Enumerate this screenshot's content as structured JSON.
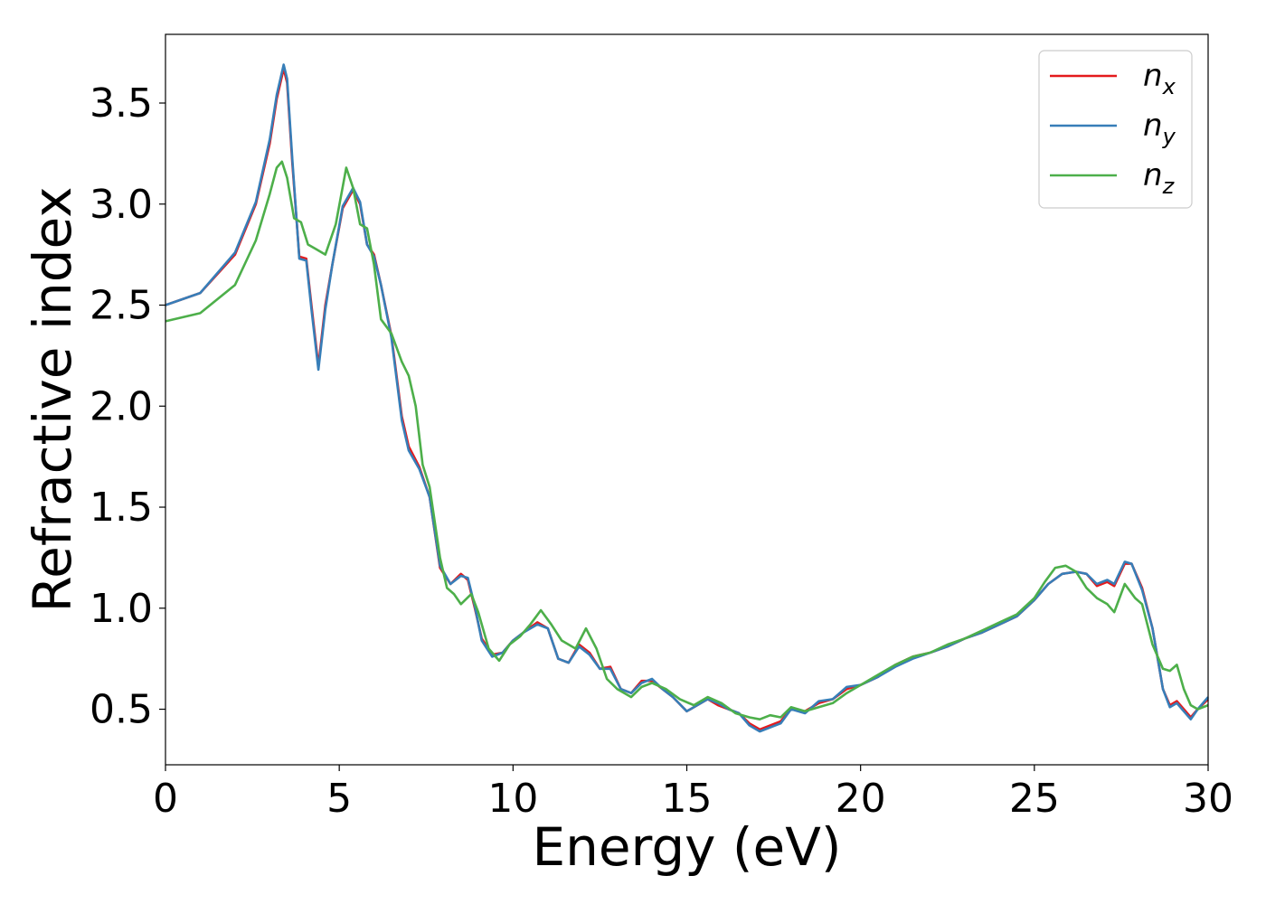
{
  "chart_data": {
    "type": "line",
    "xlabel": "Energy (eV)",
    "ylabel": "Refractive index",
    "xlim": [
      0,
      30
    ],
    "ylim": [
      0.225,
      3.84
    ],
    "xticks": [
      0,
      5,
      10,
      15,
      20,
      25,
      30
    ],
    "xtick_labels": [
      "0",
      "5",
      "10",
      "15",
      "20",
      "25",
      "30"
    ],
    "yticks": [
      0.5,
      1.0,
      1.5,
      2.0,
      2.5,
      3.0,
      3.5
    ],
    "ytick_labels": [
      "0.5",
      "1.0",
      "1.5",
      "2.0",
      "2.5",
      "3.0",
      "3.5"
    ],
    "grid": false,
    "legend_position": "top-right",
    "series": [
      {
        "name": "n",
        "subscript": "x",
        "color": "#e41a1c",
        "x": [
          0,
          1,
          2,
          2.6,
          3.0,
          3.2,
          3.4,
          3.5,
          3.65,
          3.85,
          4.05,
          4.2,
          4.4,
          4.6,
          4.8,
          5.1,
          5.4,
          5.6,
          5.8,
          6.0,
          6.2,
          6.5,
          6.8,
          7.0,
          7.3,
          7.6,
          7.9,
          8.2,
          8.5,
          8.7,
          8.9,
          9.1,
          9.4,
          9.7,
          10.0,
          10.3,
          10.7,
          11.0,
          11.3,
          11.6,
          11.9,
          12.2,
          12.5,
          12.8,
          13.1,
          13.4,
          13.7,
          14.0,
          14.3,
          14.6,
          15.0,
          15.3,
          15.6,
          15.9,
          16.2,
          16.5,
          16.8,
          17.1,
          17.4,
          17.7,
          18.0,
          18.4,
          18.8,
          19.2,
          19.6,
          20.0,
          20.5,
          21.0,
          21.5,
          22.0,
          22.5,
          23.0,
          23.5,
          24.0,
          24.5,
          25.0,
          25.4,
          25.8,
          26.2,
          26.5,
          26.8,
          27.1,
          27.3,
          27.6,
          27.8,
          28.1,
          28.4,
          28.7,
          28.9,
          29.1,
          29.3,
          29.5,
          29.7,
          30.0
        ],
        "y": [
          2.5,
          2.56,
          2.75,
          3.0,
          3.3,
          3.52,
          3.67,
          3.6,
          3.2,
          2.74,
          2.73,
          2.5,
          2.2,
          2.5,
          2.7,
          2.98,
          3.07,
          3.0,
          2.8,
          2.75,
          2.6,
          2.35,
          1.95,
          1.8,
          1.7,
          1.55,
          1.2,
          1.12,
          1.17,
          1.14,
          1.0,
          0.85,
          0.77,
          0.78,
          0.84,
          0.88,
          0.93,
          0.9,
          0.75,
          0.73,
          0.82,
          0.78,
          0.7,
          0.71,
          0.6,
          0.58,
          0.64,
          0.64,
          0.6,
          0.56,
          0.49,
          0.52,
          0.55,
          0.52,
          0.5,
          0.48,
          0.43,
          0.4,
          0.42,
          0.44,
          0.5,
          0.49,
          0.53,
          0.55,
          0.6,
          0.62,
          0.66,
          0.72,
          0.76,
          0.78,
          0.81,
          0.85,
          0.88,
          0.92,
          0.96,
          1.04,
          1.12,
          1.17,
          1.18,
          1.17,
          1.11,
          1.13,
          1.11,
          1.22,
          1.22,
          1.1,
          0.9,
          0.6,
          0.52,
          0.54,
          0.5,
          0.46,
          0.5,
          0.55
        ]
      },
      {
        "name": "n",
        "subscript": "y",
        "color": "#377eb8",
        "x": [
          0,
          1,
          2,
          2.6,
          3.0,
          3.2,
          3.4,
          3.5,
          3.65,
          3.85,
          4.05,
          4.2,
          4.4,
          4.6,
          4.8,
          5.1,
          5.4,
          5.6,
          5.8,
          6.0,
          6.2,
          6.5,
          6.8,
          7.0,
          7.3,
          7.6,
          7.9,
          8.2,
          8.5,
          8.7,
          8.9,
          9.1,
          9.4,
          9.7,
          10.0,
          10.3,
          10.7,
          11.0,
          11.3,
          11.6,
          11.9,
          12.2,
          12.5,
          12.8,
          13.1,
          13.4,
          13.7,
          14.0,
          14.3,
          14.6,
          15.0,
          15.3,
          15.6,
          15.9,
          16.2,
          16.5,
          16.8,
          17.1,
          17.4,
          17.7,
          18.0,
          18.4,
          18.8,
          19.2,
          19.6,
          20.0,
          20.5,
          21.0,
          21.5,
          22.0,
          22.5,
          23.0,
          23.5,
          24.0,
          24.5,
          25.0,
          25.4,
          25.8,
          26.2,
          26.5,
          26.8,
          27.1,
          27.3,
          27.6,
          27.8,
          28.1,
          28.4,
          28.7,
          28.9,
          29.1,
          29.3,
          29.5,
          29.7,
          30.0
        ],
        "y": [
          2.5,
          2.56,
          2.76,
          3.01,
          3.32,
          3.54,
          3.69,
          3.62,
          3.22,
          2.73,
          2.72,
          2.48,
          2.18,
          2.48,
          2.7,
          2.99,
          3.08,
          3.01,
          2.8,
          2.74,
          2.6,
          2.34,
          1.93,
          1.78,
          1.69,
          1.55,
          1.21,
          1.12,
          1.16,
          1.15,
          1.01,
          0.84,
          0.76,
          0.78,
          0.84,
          0.88,
          0.92,
          0.9,
          0.75,
          0.73,
          0.81,
          0.77,
          0.7,
          0.7,
          0.6,
          0.58,
          0.63,
          0.65,
          0.6,
          0.56,
          0.49,
          0.52,
          0.55,
          0.53,
          0.5,
          0.48,
          0.42,
          0.39,
          0.41,
          0.43,
          0.5,
          0.48,
          0.54,
          0.55,
          0.61,
          0.62,
          0.66,
          0.71,
          0.75,
          0.78,
          0.81,
          0.85,
          0.88,
          0.92,
          0.96,
          1.04,
          1.12,
          1.17,
          1.18,
          1.17,
          1.12,
          1.14,
          1.12,
          1.23,
          1.22,
          1.09,
          0.9,
          0.6,
          0.51,
          0.53,
          0.49,
          0.45,
          0.5,
          0.56
        ]
      },
      {
        "name": "n",
        "subscript": "z",
        "color": "#4daf4a",
        "x": [
          0,
          1,
          2,
          2.6,
          3.0,
          3.2,
          3.35,
          3.5,
          3.7,
          3.9,
          4.1,
          4.3,
          4.6,
          4.9,
          5.2,
          5.4,
          5.6,
          5.8,
          6.0,
          6.2,
          6.5,
          6.8,
          7.0,
          7.2,
          7.4,
          7.6,
          7.9,
          8.1,
          8.3,
          8.5,
          8.8,
          9.0,
          9.3,
          9.6,
          9.9,
          10.2,
          10.5,
          10.8,
          11.1,
          11.4,
          11.8,
          12.1,
          12.4,
          12.7,
          13.0,
          13.4,
          13.7,
          14.0,
          14.4,
          14.8,
          15.2,
          15.6,
          16.0,
          16.4,
          16.8,
          17.1,
          17.4,
          17.7,
          18.0,
          18.4,
          18.8,
          19.2,
          19.6,
          20.0,
          20.5,
          21.0,
          21.5,
          22.0,
          22.5,
          23.0,
          23.5,
          24.0,
          24.5,
          25.0,
          25.3,
          25.6,
          25.9,
          26.2,
          26.5,
          26.8,
          27.1,
          27.3,
          27.6,
          27.9,
          28.1,
          28.4,
          28.7,
          28.9,
          29.1,
          29.3,
          29.5,
          29.7,
          30.0
        ],
        "y": [
          2.42,
          2.46,
          2.6,
          2.82,
          3.05,
          3.18,
          3.21,
          3.13,
          2.93,
          2.91,
          2.8,
          2.78,
          2.75,
          2.9,
          3.18,
          3.08,
          2.9,
          2.88,
          2.7,
          2.43,
          2.36,
          2.22,
          2.15,
          2.0,
          1.71,
          1.6,
          1.25,
          1.1,
          1.07,
          1.02,
          1.07,
          0.98,
          0.8,
          0.74,
          0.82,
          0.86,
          0.92,
          0.99,
          0.92,
          0.84,
          0.8,
          0.9,
          0.8,
          0.65,
          0.6,
          0.56,
          0.61,
          0.63,
          0.6,
          0.55,
          0.52,
          0.56,
          0.53,
          0.48,
          0.46,
          0.45,
          0.47,
          0.46,
          0.51,
          0.49,
          0.51,
          0.53,
          0.58,
          0.62,
          0.67,
          0.72,
          0.76,
          0.78,
          0.82,
          0.85,
          0.89,
          0.93,
          0.97,
          1.05,
          1.13,
          1.2,
          1.21,
          1.18,
          1.1,
          1.05,
          1.02,
          0.98,
          1.12,
          1.05,
          1.02,
          0.82,
          0.7,
          0.69,
          0.72,
          0.6,
          0.52,
          0.5,
          0.52
        ]
      }
    ]
  }
}
